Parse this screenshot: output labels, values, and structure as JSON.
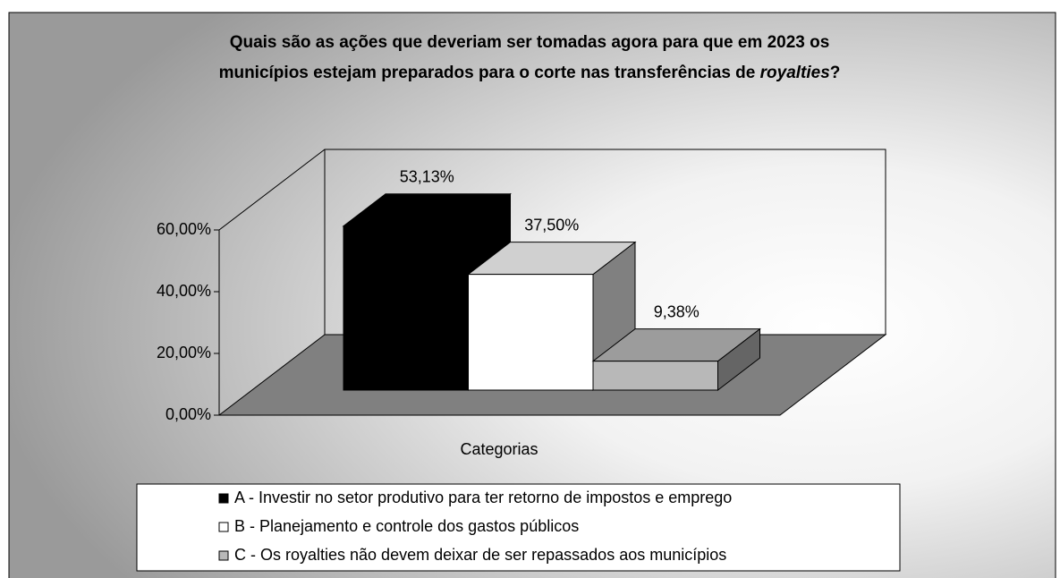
{
  "chart_data": {
    "type": "bar3d",
    "title": [
      "Quais são as ações que deveriam ser tomadas agora para que em 2023 os",
      "municípios estejam preparados para o corte nas transferências de",
      "royalties",
      "?"
    ],
    "xlabel": "Categorias",
    "series": [
      {
        "name": "A - Investir no setor produtivo para ter retorno de impostos e emprego",
        "color": "#000000",
        "values": [
          53.13
        ],
        "value_labels": [
          "53,13%"
        ]
      },
      {
        "name": "B - Planejamento e controle dos gastos públicos",
        "color": "#ffffff",
        "values": [
          37.5
        ],
        "value_labels": [
          "37,50%"
        ]
      },
      {
        "name": "C - Os royalties não devem deixar de ser repassados aos municípios",
        "color": "#b8b8b8",
        "values": [
          9.38
        ],
        "value_labels": [
          "9,38%"
        ]
      }
    ],
    "ylim": [
      0,
      60
    ],
    "yticks": [
      {
        "value": 0,
        "label": "0,00%"
      },
      {
        "value": 20,
        "label": "20,00%"
      },
      {
        "value": 40,
        "label": "40,00%"
      },
      {
        "value": 60,
        "label": "60,00%"
      }
    ],
    "legend": "bottom"
  }
}
